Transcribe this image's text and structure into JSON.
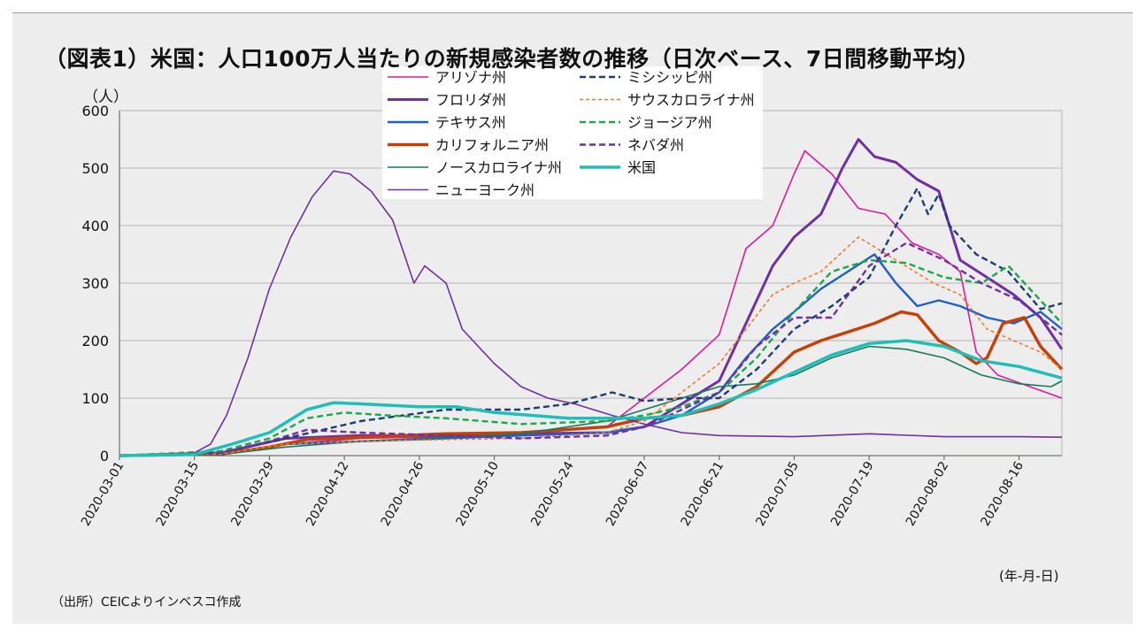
{
  "title": "（図表1）米国：人口100万人当たりの新規感染者数の推移（日次ベース、7日間移動平均）",
  "source": "（出所）CEICよりインベスコ作成",
  "chart_data": {
    "type": "line",
    "ylabel": "（人）",
    "xlabel": "(年-月-日)",
    "ylim": [
      0,
      600
    ],
    "yticks": [
      0,
      100,
      200,
      300,
      400,
      500,
      600
    ],
    "x_start": "2020-03-01",
    "x_end": "2020-08-24",
    "xticks": [
      "2020-03-01",
      "2020-03-15",
      "2020-03-29",
      "2020-04-12",
      "2020-04-26",
      "2020-05-10",
      "2020-05-24",
      "2020-06-07",
      "2020-06-21",
      "2020-07-05",
      "2020-07-19",
      "2020-08-02",
      "2020-08-16"
    ],
    "grid": "horizontal",
    "legend_position": "top-center",
    "series": [
      {
        "name": "アリゾナ州",
        "color": "#e0189a",
        "width": 1.6,
        "dash": "",
        "points": [
          [
            "2020-03-01",
            0
          ],
          [
            "2020-03-20",
            3
          ],
          [
            "2020-04-01",
            20
          ],
          [
            "2020-04-15",
            30
          ],
          [
            "2020-05-01",
            33
          ],
          [
            "2020-05-15",
            38
          ],
          [
            "2020-05-31",
            50
          ],
          [
            "2020-06-07",
            100
          ],
          [
            "2020-06-14",
            150
          ],
          [
            "2020-06-21",
            210
          ],
          [
            "2020-06-26",
            360
          ],
          [
            "2020-07-01",
            400
          ],
          [
            "2020-07-05",
            490
          ],
          [
            "2020-07-07",
            530
          ],
          [
            "2020-07-12",
            490
          ],
          [
            "2020-07-17",
            430
          ],
          [
            "2020-07-22",
            420
          ],
          [
            "2020-07-27",
            370
          ],
          [
            "2020-08-01",
            350
          ],
          [
            "2020-08-05",
            320
          ],
          [
            "2020-08-08",
            180
          ],
          [
            "2020-08-12",
            140
          ],
          [
            "2020-08-18",
            120
          ],
          [
            "2020-08-24",
            100
          ]
        ]
      },
      {
        "name": "フロリダ州",
        "color": "#7030a0",
        "width": 3,
        "dash": "",
        "points": [
          [
            "2020-03-01",
            0
          ],
          [
            "2020-03-20",
            5
          ],
          [
            "2020-04-01",
            30
          ],
          [
            "2020-04-15",
            35
          ],
          [
            "2020-05-01",
            35
          ],
          [
            "2020-05-15",
            38
          ],
          [
            "2020-05-31",
            40
          ],
          [
            "2020-06-07",
            50
          ],
          [
            "2020-06-14",
            90
          ],
          [
            "2020-06-21",
            130
          ],
          [
            "2020-06-26",
            230
          ],
          [
            "2020-07-01",
            330
          ],
          [
            "2020-07-05",
            380
          ],
          [
            "2020-07-10",
            420
          ],
          [
            "2020-07-14",
            500
          ],
          [
            "2020-07-17",
            550
          ],
          [
            "2020-07-20",
            520
          ],
          [
            "2020-07-24",
            510
          ],
          [
            "2020-07-28",
            480
          ],
          [
            "2020-08-01",
            460
          ],
          [
            "2020-08-05",
            340
          ],
          [
            "2020-08-10",
            310
          ],
          [
            "2020-08-15",
            280
          ],
          [
            "2020-08-20",
            240
          ],
          [
            "2020-08-24",
            185
          ]
        ]
      },
      {
        "name": "テキサス州",
        "color": "#1f5fc7",
        "width": 2.4,
        "dash": "",
        "points": [
          [
            "2020-03-01",
            0
          ],
          [
            "2020-03-20",
            2
          ],
          [
            "2020-04-01",
            20
          ],
          [
            "2020-04-15",
            25
          ],
          [
            "2020-05-01",
            30
          ],
          [
            "2020-05-15",
            35
          ],
          [
            "2020-05-31",
            40
          ],
          [
            "2020-06-07",
            50
          ],
          [
            "2020-06-14",
            70
          ],
          [
            "2020-06-21",
            110
          ],
          [
            "2020-06-26",
            170
          ],
          [
            "2020-07-01",
            220
          ],
          [
            "2020-07-05",
            250
          ],
          [
            "2020-07-10",
            290
          ],
          [
            "2020-07-15",
            320
          ],
          [
            "2020-07-20",
            350
          ],
          [
            "2020-07-24",
            300
          ],
          [
            "2020-07-28",
            260
          ],
          [
            "2020-08-01",
            270
          ],
          [
            "2020-08-05",
            260
          ],
          [
            "2020-08-10",
            240
          ],
          [
            "2020-08-15",
            230
          ],
          [
            "2020-08-20",
            250
          ],
          [
            "2020-08-24",
            220
          ]
        ]
      },
      {
        "name": "カリフォルニア州",
        "color": "#c5410a",
        "width": 3.5,
        "dash": "",
        "points": [
          [
            "2020-03-01",
            0
          ],
          [
            "2020-03-20",
            3
          ],
          [
            "2020-03-29",
            15
          ],
          [
            "2020-04-05",
            28
          ],
          [
            "2020-04-15",
            32
          ],
          [
            "2020-05-01",
            38
          ],
          [
            "2020-05-15",
            40
          ],
          [
            "2020-05-31",
            50
          ],
          [
            "2020-06-07",
            65
          ],
          [
            "2020-06-14",
            70
          ],
          [
            "2020-06-21",
            85
          ],
          [
            "2020-06-28",
            120
          ],
          [
            "2020-07-05",
            180
          ],
          [
            "2020-07-10",
            200
          ],
          [
            "2020-07-15",
            215
          ],
          [
            "2020-07-20",
            230
          ],
          [
            "2020-07-25",
            250
          ],
          [
            "2020-07-28",
            245
          ],
          [
            "2020-08-01",
            200
          ],
          [
            "2020-08-05",
            180
          ],
          [
            "2020-08-08",
            160
          ],
          [
            "2020-08-10",
            170
          ],
          [
            "2020-08-13",
            230
          ],
          [
            "2020-08-17",
            240
          ],
          [
            "2020-08-20",
            190
          ],
          [
            "2020-08-24",
            150
          ]
        ]
      },
      {
        "name": "ノースカロライナ州",
        "color": "#18795c",
        "width": 1.6,
        "dash": "",
        "points": [
          [
            "2020-03-01",
            0
          ],
          [
            "2020-03-20",
            2
          ],
          [
            "2020-04-01",
            15
          ],
          [
            "2020-04-15",
            25
          ],
          [
            "2020-05-01",
            32
          ],
          [
            "2020-05-15",
            38
          ],
          [
            "2020-05-31",
            60
          ],
          [
            "2020-06-07",
            80
          ],
          [
            "2020-06-14",
            100
          ],
          [
            "2020-06-21",
            120
          ],
          [
            "2020-06-28",
            125
          ],
          [
            "2020-07-05",
            140
          ],
          [
            "2020-07-12",
            170
          ],
          [
            "2020-07-19",
            190
          ],
          [
            "2020-07-26",
            185
          ],
          [
            "2020-08-02",
            170
          ],
          [
            "2020-08-09",
            140
          ],
          [
            "2020-08-16",
            125
          ],
          [
            "2020-08-22",
            120
          ],
          [
            "2020-08-24",
            130
          ]
        ]
      },
      {
        "name": "ニューヨーク州",
        "color": "#7030a0",
        "width": 1.6,
        "dash": "",
        "points": [
          [
            "2020-03-01",
            0
          ],
          [
            "2020-03-10",
            1
          ],
          [
            "2020-03-15",
            5
          ],
          [
            "2020-03-18",
            20
          ],
          [
            "2020-03-21",
            70
          ],
          [
            "2020-03-25",
            170
          ],
          [
            "2020-03-29",
            290
          ],
          [
            "2020-04-02",
            380
          ],
          [
            "2020-04-06",
            450
          ],
          [
            "2020-04-10",
            495
          ],
          [
            "2020-04-13",
            490
          ],
          [
            "2020-04-17",
            460
          ],
          [
            "2020-04-21",
            410
          ],
          [
            "2020-04-25",
            300
          ],
          [
            "2020-04-27",
            330
          ],
          [
            "2020-05-01",
            300
          ],
          [
            "2020-05-04",
            220
          ],
          [
            "2020-05-10",
            160
          ],
          [
            "2020-05-15",
            120
          ],
          [
            "2020-05-20",
            100
          ],
          [
            "2020-05-25",
            90
          ],
          [
            "2020-06-01",
            70
          ],
          [
            "2020-06-07",
            55
          ],
          [
            "2020-06-14",
            40
          ],
          [
            "2020-06-21",
            35
          ],
          [
            "2020-07-05",
            33
          ],
          [
            "2020-07-19",
            38
          ],
          [
            "2020-08-02",
            33
          ],
          [
            "2020-08-16",
            33
          ],
          [
            "2020-08-24",
            32
          ]
        ]
      },
      {
        "name": "ミシシッピ州",
        "color": "#1f3c78",
        "width": 2.4,
        "dash": "7,4",
        "points": [
          [
            "2020-03-01",
            0
          ],
          [
            "2020-03-20",
            5
          ],
          [
            "2020-04-01",
            30
          ],
          [
            "2020-04-15",
            60
          ],
          [
            "2020-05-01",
            80
          ],
          [
            "2020-05-15",
            80
          ],
          [
            "2020-05-24",
            90
          ],
          [
            "2020-06-01",
            110
          ],
          [
            "2020-06-07",
            95
          ],
          [
            "2020-06-14",
            100
          ],
          [
            "2020-06-21",
            100
          ],
          [
            "2020-06-28",
            150
          ],
          [
            "2020-07-05",
            220
          ],
          [
            "2020-07-12",
            260
          ],
          [
            "2020-07-19",
            310
          ],
          [
            "2020-07-24",
            400
          ],
          [
            "2020-07-28",
            465
          ],
          [
            "2020-07-30",
            420
          ],
          [
            "2020-08-01",
            455
          ],
          [
            "2020-08-03",
            400
          ],
          [
            "2020-08-08",
            350
          ],
          [
            "2020-08-14",
            320
          ],
          [
            "2020-08-20",
            255
          ],
          [
            "2020-08-24",
            265
          ]
        ]
      },
      {
        "name": "サウスカロライナ州",
        "color": "#f07a2a",
        "width": 1.6,
        "dash": "4,3",
        "points": [
          [
            "2020-03-01",
            0
          ],
          [
            "2020-03-20",
            3
          ],
          [
            "2020-04-01",
            20
          ],
          [
            "2020-04-15",
            25
          ],
          [
            "2020-05-01",
            28
          ],
          [
            "2020-05-15",
            30
          ],
          [
            "2020-05-31",
            40
          ],
          [
            "2020-06-07",
            60
          ],
          [
            "2020-06-14",
            110
          ],
          [
            "2020-06-21",
            160
          ],
          [
            "2020-06-26",
            220
          ],
          [
            "2020-07-01",
            280
          ],
          [
            "2020-07-05",
            300
          ],
          [
            "2020-07-10",
            320
          ],
          [
            "2020-07-17",
            380
          ],
          [
            "2020-07-24",
            340
          ],
          [
            "2020-07-31",
            300
          ],
          [
            "2020-08-05",
            280
          ],
          [
            "2020-08-10",
            220
          ],
          [
            "2020-08-15",
            200
          ],
          [
            "2020-08-20",
            180
          ],
          [
            "2020-08-24",
            150
          ]
        ]
      },
      {
        "name": "ジョージア州",
        "color": "#1aa84b",
        "width": 2.4,
        "dash": "7,4",
        "points": [
          [
            "2020-03-01",
            0
          ],
          [
            "2020-03-20",
            8
          ],
          [
            "2020-03-29",
            30
          ],
          [
            "2020-04-05",
            65
          ],
          [
            "2020-04-12",
            75
          ],
          [
            "2020-04-20",
            70
          ],
          [
            "2020-05-01",
            65
          ],
          [
            "2020-05-15",
            55
          ],
          [
            "2020-05-31",
            60
          ],
          [
            "2020-06-07",
            70
          ],
          [
            "2020-06-14",
            85
          ],
          [
            "2020-06-21",
            110
          ],
          [
            "2020-06-28",
            170
          ],
          [
            "2020-07-05",
            250
          ],
          [
            "2020-07-12",
            320
          ],
          [
            "2020-07-19",
            340
          ],
          [
            "2020-07-26",
            335
          ],
          [
            "2020-08-02",
            310
          ],
          [
            "2020-08-09",
            300
          ],
          [
            "2020-08-14",
            330
          ],
          [
            "2020-08-18",
            290
          ],
          [
            "2020-08-24",
            230
          ]
        ]
      },
      {
        "name": "ネバダ州",
        "color": "#7030a0",
        "width": 2.4,
        "dash": "7,4",
        "points": [
          [
            "2020-03-01",
            0
          ],
          [
            "2020-03-20",
            5
          ],
          [
            "2020-03-29",
            25
          ],
          [
            "2020-04-05",
            45
          ],
          [
            "2020-04-15",
            40
          ],
          [
            "2020-05-01",
            35
          ],
          [
            "2020-05-15",
            30
          ],
          [
            "2020-05-31",
            35
          ],
          [
            "2020-06-07",
            50
          ],
          [
            "2020-06-14",
            80
          ],
          [
            "2020-06-21",
            110
          ],
          [
            "2020-06-28",
            190
          ],
          [
            "2020-07-05",
            240
          ],
          [
            "2020-07-12",
            240
          ],
          [
            "2020-07-19",
            330
          ],
          [
            "2020-07-26",
            370
          ],
          [
            "2020-08-02",
            340
          ],
          [
            "2020-08-09",
            300
          ],
          [
            "2020-08-16",
            270
          ],
          [
            "2020-08-20",
            240
          ],
          [
            "2020-08-24",
            210
          ]
        ]
      },
      {
        "name": "米国",
        "color": "#1fbfb8",
        "width": 3.5,
        "dash": "",
        "points": [
          [
            "2020-03-01",
            0
          ],
          [
            "2020-03-15",
            2
          ],
          [
            "2020-03-22",
            20
          ],
          [
            "2020-03-29",
            40
          ],
          [
            "2020-04-05",
            80
          ],
          [
            "2020-04-10",
            92
          ],
          [
            "2020-04-15",
            90
          ],
          [
            "2020-04-26",
            85
          ],
          [
            "2020-05-03",
            85
          ],
          [
            "2020-05-10",
            75
          ],
          [
            "2020-05-17",
            70
          ],
          [
            "2020-05-24",
            65
          ],
          [
            "2020-05-31",
            65
          ],
          [
            "2020-06-07",
            65
          ],
          [
            "2020-06-14",
            70
          ],
          [
            "2020-06-21",
            90
          ],
          [
            "2020-06-28",
            115
          ],
          [
            "2020-07-05",
            145
          ],
          [
            "2020-07-12",
            175
          ],
          [
            "2020-07-19",
            195
          ],
          [
            "2020-07-26",
            200
          ],
          [
            "2020-08-02",
            190
          ],
          [
            "2020-08-09",
            165
          ],
          [
            "2020-08-16",
            155
          ],
          [
            "2020-08-24",
            135
          ]
        ]
      }
    ]
  }
}
